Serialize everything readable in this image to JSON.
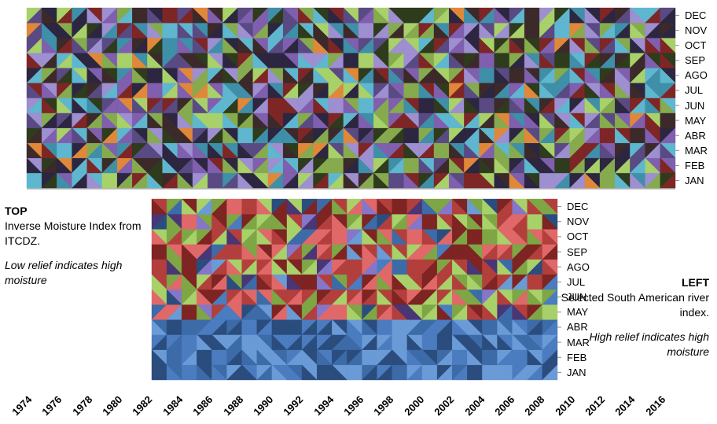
{
  "chart_data": [
    {
      "type": "heatmap",
      "months": [
        "JAN",
        "FEB",
        "MAR",
        "ABR",
        "MAY",
        "JUN",
        "JUL",
        "AGO",
        "SEP",
        "OCT",
        "NOV",
        "DEC"
      ],
      "year_start": 1974,
      "year_end": 2016,
      "year_labels": [
        "1974",
        "1976",
        "1978",
        "1980",
        "1982",
        "1984",
        "1986",
        "1988",
        "1990",
        "1992",
        "1994",
        "1996",
        "1998",
        "2000",
        "2002",
        "2004",
        "2006",
        "2008",
        "2010",
        "2012",
        "2014",
        "2016"
      ],
      "palette": [
        "#2c2641",
        "#5a4a83",
        "#7f5fae",
        "#9d8fd0",
        "#3c2a2a",
        "#7e2626",
        "#a8d16a",
        "#86ab4f",
        "#2f3b1d",
        "#3f8fa9",
        "#5fb7cf",
        "#e0883a"
      ]
    },
    {
      "type": "heatmap",
      "months": [
        "JAN",
        "FEB",
        "MAR",
        "ABR",
        "MAY",
        "JUN",
        "JUL",
        "AGO",
        "SEP",
        "OCT",
        "NOV",
        "DEC"
      ],
      "year_start": 1982,
      "year_end": 2008,
      "palette": [
        "#2b4d7e",
        "#3c6ba8",
        "#4a7cbf",
        "#6a9bd6",
        "#7e2422",
        "#b33f3c",
        "#e06868",
        "#7ea645",
        "#a8d16a",
        "#4a3575",
        "#8676c9"
      ]
    }
  ],
  "notes": {
    "top": {
      "title": "TOP",
      "body": "Inverse Moisture Index from  ITCDZ.",
      "italic": "Low relief indicates high moisture"
    },
    "left": {
      "title": "LEFT",
      "body": "Selected South American river index.",
      "italic": "High relief indicates high moisture"
    }
  }
}
